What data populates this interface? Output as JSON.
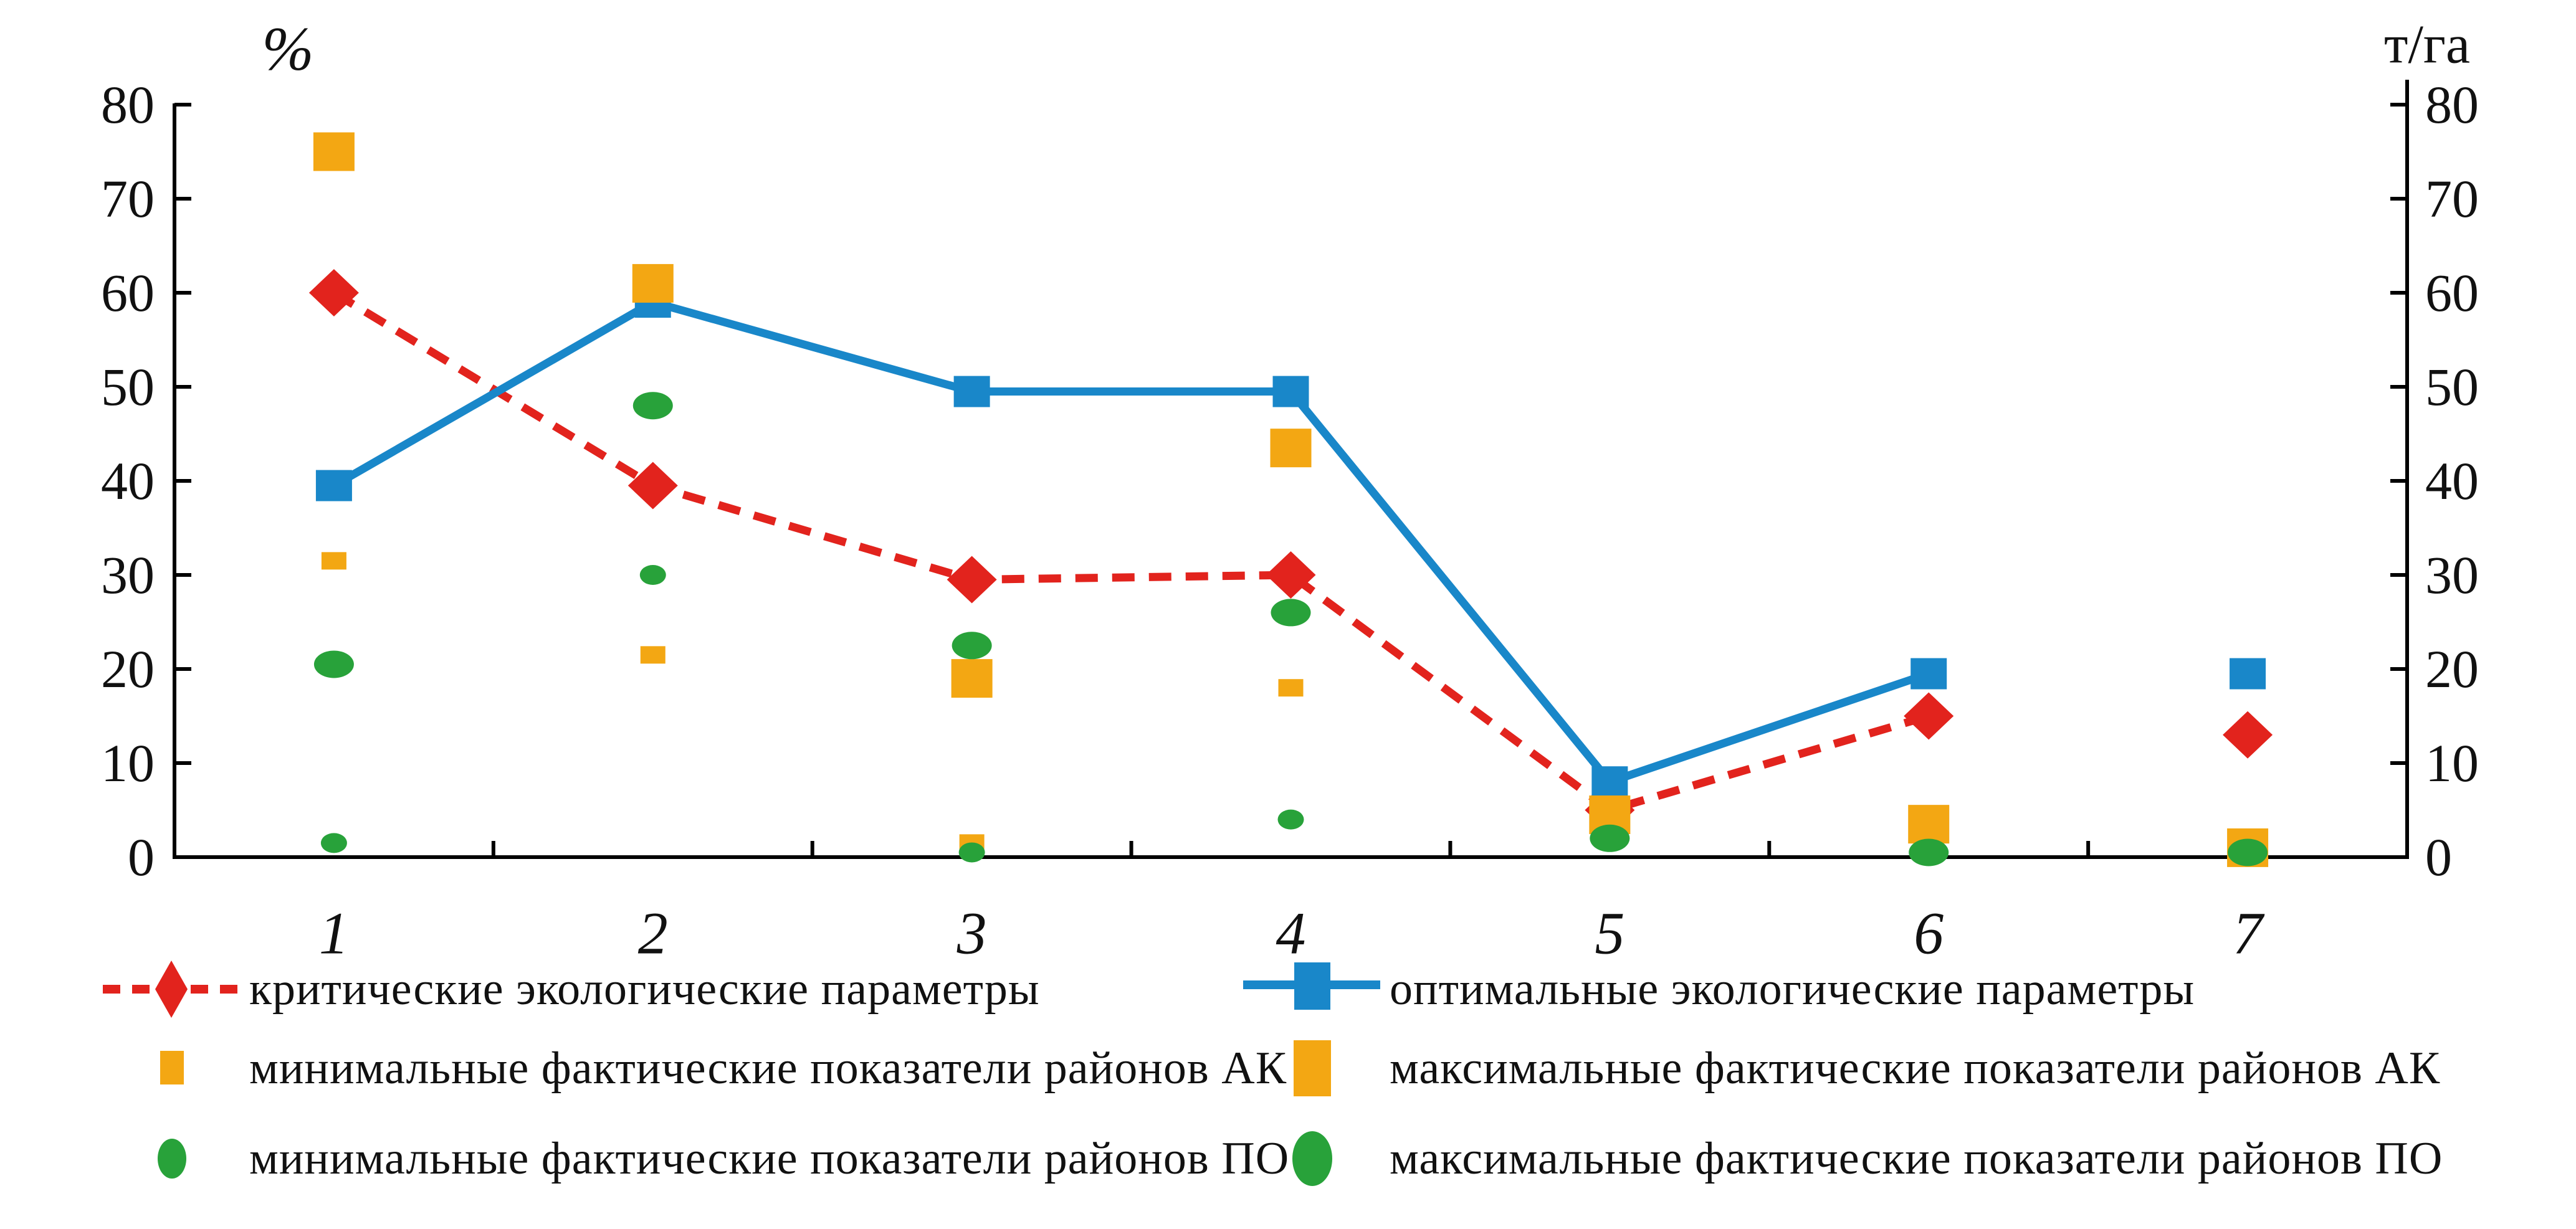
{
  "chart_data": {
    "type": "line",
    "title": "",
    "left_axis_unit": "%",
    "right_axis_unit": "т/га",
    "categories": [
      "1",
      "2",
      "3",
      "4",
      "5",
      "6",
      "7"
    ],
    "ylim": [
      0,
      80
    ],
    "ytick_step": 10,
    "yticks": [
      0,
      10,
      20,
      30,
      40,
      50,
      60,
      70,
      80
    ],
    "grid": false,
    "legend_position": "bottom",
    "axis_color": "#000000",
    "series": [
      {
        "name": "критические экологические параметры",
        "color": "#e2231d",
        "marker": "diamond",
        "line": "dashed",
        "connect_points": 6,
        "values": [
          60,
          39.5,
          29.5,
          30,
          5,
          15,
          13
        ]
      },
      {
        "name": "оптимальные экологические параметры",
        "color": "#1987c9",
        "marker": "square",
        "line": "solid",
        "connect_points": 6,
        "values": [
          39.5,
          59,
          49.5,
          49.5,
          8,
          19.5,
          19.5
        ]
      },
      {
        "name": "минимальные фактические показатели районов АК",
        "color": "#f3a713",
        "marker": "square-small",
        "line": "none",
        "connect_points": 0,
        "values": [
          31.5,
          21.5,
          1.5,
          18,
          null,
          null,
          null
        ]
      },
      {
        "name": "максимальные фактические показатели районов АК",
        "color": "#f3a713",
        "marker": "square-large",
        "line": "none",
        "connect_points": 0,
        "values": [
          75,
          61,
          19,
          43.5,
          4.5,
          3.5,
          1
        ]
      },
      {
        "name": "минимальные фактические показатели районов ПО",
        "color": "#28a23a",
        "marker": "circle-small",
        "line": "none",
        "connect_points": 0,
        "values": [
          1.5,
          30,
          0.5,
          4,
          null,
          null,
          null
        ]
      },
      {
        "name": "максимальные фактические показатели районов ПО",
        "color": "#28a23a",
        "marker": "circle-large",
        "line": "none",
        "connect_points": 0,
        "values": [
          20.5,
          48,
          22.5,
          26,
          2,
          0.5,
          0.5
        ]
      }
    ]
  }
}
